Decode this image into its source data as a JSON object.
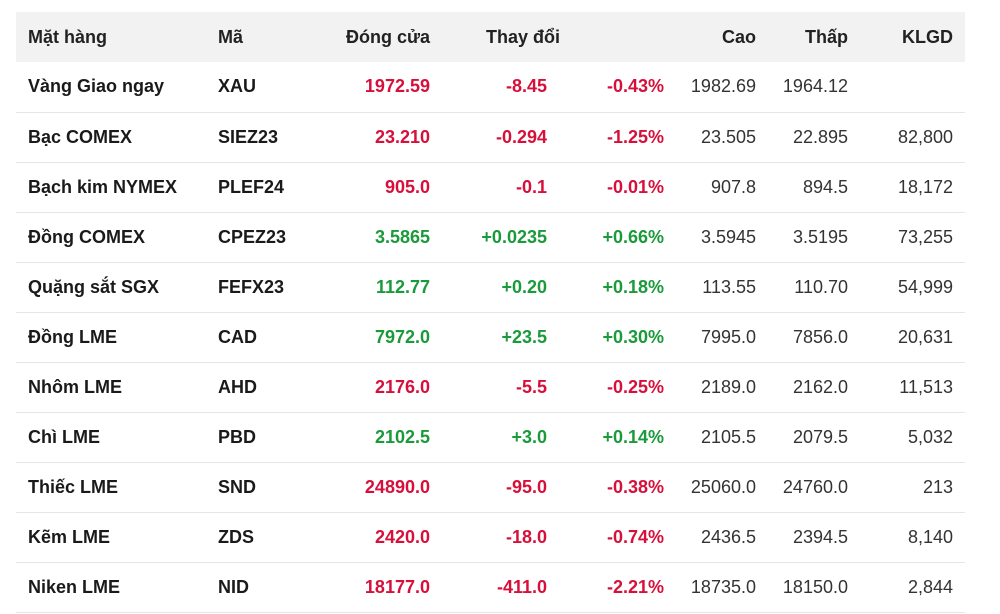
{
  "headers": {
    "name": "Mặt hàng",
    "code": "Mã",
    "close": "Đóng cửa",
    "change": "Thay đổi",
    "high": "Cao",
    "low": "Thấp",
    "volume": "KLGD"
  },
  "colors": {
    "negative": "#d6103b",
    "positive": "#1a9a3a",
    "header_bg": "#f2f2f2"
  },
  "rows": [
    {
      "name": "Vàng Giao ngay",
      "code": "XAU",
      "close": "1972.59",
      "change": "-8.45",
      "pct": "-0.43%",
      "high": "1982.69",
      "low": "1964.12",
      "volume": "",
      "direction": "neg"
    },
    {
      "name": "Bạc COMEX",
      "code": "SIEZ23",
      "close": "23.210",
      "change": "-0.294",
      "pct": "-1.25%",
      "high": "23.505",
      "low": "22.895",
      "volume": "82,800",
      "direction": "neg"
    },
    {
      "name": "Bạch kim NYMEX",
      "code": "PLEF24",
      "close": "905.0",
      "change": "-0.1",
      "pct": "-0.01%",
      "high": "907.8",
      "low": "894.5",
      "volume": "18,172",
      "direction": "neg"
    },
    {
      "name": "Đồng COMEX",
      "code": "CPEZ23",
      "close": "3.5865",
      "change": "+0.0235",
      "pct": "+0.66%",
      "high": "3.5945",
      "low": "3.5195",
      "volume": "73,255",
      "direction": "pos"
    },
    {
      "name": "Quặng sắt SGX",
      "code": "FEFX23",
      "close": "112.77",
      "change": "+0.20",
      "pct": "+0.18%",
      "high": "113.55",
      "low": "110.70",
      "volume": "54,999",
      "direction": "pos"
    },
    {
      "name": "Đồng LME",
      "code": "CAD",
      "close": "7972.0",
      "change": "+23.5",
      "pct": "+0.30%",
      "high": "7995.0",
      "low": "7856.0",
      "volume": "20,631",
      "direction": "pos"
    },
    {
      "name": "Nhôm LME",
      "code": "AHD",
      "close": "2176.0",
      "change": "-5.5",
      "pct": "-0.25%",
      "high": "2189.0",
      "low": "2162.0",
      "volume": "11,513",
      "direction": "neg"
    },
    {
      "name": "Chì LME",
      "code": "PBD",
      "close": "2102.5",
      "change": "+3.0",
      "pct": "+0.14%",
      "high": "2105.5",
      "low": "2079.5",
      "volume": "5,032",
      "direction": "pos"
    },
    {
      "name": "Thiếc LME",
      "code": "SND",
      "close": "24890.0",
      "change": "-95.0",
      "pct": "-0.38%",
      "high": "25060.0",
      "low": "24760.0",
      "volume": "213",
      "direction": "neg"
    },
    {
      "name": "Kẽm LME",
      "code": "ZDS",
      "close": "2420.0",
      "change": "-18.0",
      "pct": "-0.74%",
      "high": "2436.5",
      "low": "2394.5",
      "volume": "8,140",
      "direction": "neg"
    },
    {
      "name": "Niken LME",
      "code": "NID",
      "close": "18177.0",
      "change": "-411.0",
      "pct": "-2.21%",
      "high": "18735.0",
      "low": "18150.0",
      "volume": "2,844",
      "direction": "neg"
    }
  ]
}
